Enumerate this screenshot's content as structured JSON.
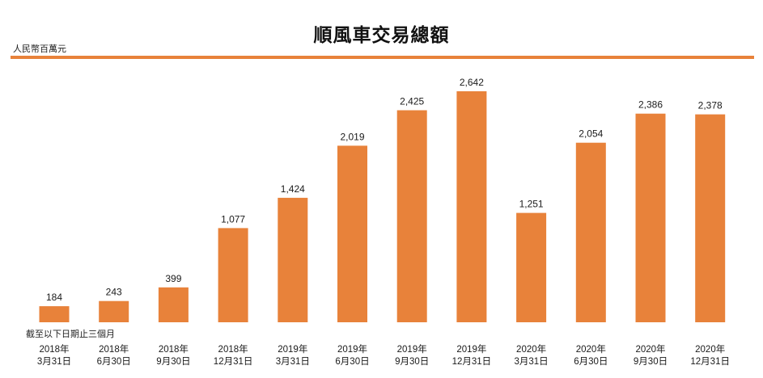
{
  "title": "順風車交易總額",
  "unit_label": "人民幣百萬元",
  "footnote": "截至以下日期止三個月",
  "accent_color": "#e8823a",
  "bar_color": "#e8823a",
  "chart_data": {
    "type": "bar",
    "title": "順風車交易總額",
    "ylabel": "人民幣百萬元",
    "xlabel": "截至以下日期止三個月",
    "categories": [
      [
        "2018年",
        "3月31日"
      ],
      [
        "2018年",
        "6月30日"
      ],
      [
        "2018年",
        "9月30日"
      ],
      [
        "2018年",
        "12月31日"
      ],
      [
        "2019年",
        "3月31日"
      ],
      [
        "2019年",
        "6月30日"
      ],
      [
        "2019年",
        "9月30日"
      ],
      [
        "2019年",
        "12月31日"
      ],
      [
        "2020年",
        "3月31日"
      ],
      [
        "2020年",
        "6月30日"
      ],
      [
        "2020年",
        "9月30日"
      ],
      [
        "2020年",
        "12月31日"
      ]
    ],
    "values": [
      184,
      243,
      399,
      1077,
      1424,
      2019,
      2425,
      2642,
      1251,
      2054,
      2386,
      2378
    ],
    "value_labels": [
      "184",
      "243",
      "399",
      "1,077",
      "1,424",
      "2,019",
      "2,425",
      "2,642",
      "1,251",
      "2,054",
      "2,386",
      "2,378"
    ],
    "ylim": [
      0,
      2642
    ],
    "grid": false,
    "legend": "none"
  }
}
